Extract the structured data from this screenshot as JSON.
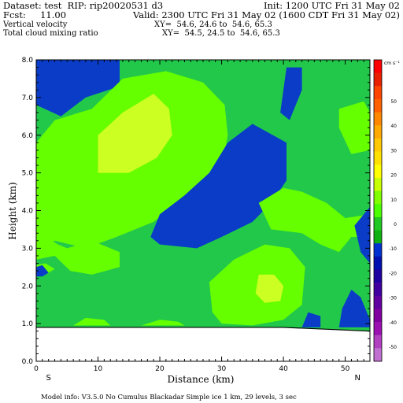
{
  "header": {
    "dataset": "Dataset: test  RIP: rip20020531 d3",
    "init": "Init: 1200 UTC Fri 31 May 02",
    "fcst": "Fcst:     11.00",
    "valid": "Valid: 2300 UTC Fri 31 May 02 (1600 CDT Fri 31 May 02)",
    "field1": "Vertical velocity",
    "xy1": "XY=  54.6, 24.6 to  54.6, 65.3",
    "field2": "Total cloud mixing ratio",
    "xy2": "XY=  54.5, 24.5 to  54.6, 65.3"
  },
  "footer": {
    "model_info": "Model info: V3.5.0 No Cumulus Blackadar  Simple ice     1 km,  29 levels,     3 sec"
  },
  "chart_data": {
    "type": "heatmap",
    "title": "",
    "xlabel": "Distance (km)",
    "ylabel": "Height (km)",
    "xlim": [
      0,
      54
    ],
    "ylim": [
      0,
      8
    ],
    "x_ticks": [
      "0",
      "10",
      "20",
      "30",
      "40",
      "50"
    ],
    "y_ticks": [
      "0.0",
      "1.0",
      "2.0",
      "3.0",
      "4.0",
      "5.0",
      "6.0",
      "7.0",
      "8.0"
    ],
    "x_end_labels": [
      "S",
      "N"
    ],
    "colorbar": {
      "unit": "cm s⁻¹",
      "labels": [
        "50",
        "40",
        "30",
        "20",
        "10",
        "0",
        "-10",
        "-20",
        "-30",
        "-40",
        "-50"
      ],
      "colors": [
        "#ff0000",
        "#e82000",
        "#ff4400",
        "#ff6000",
        "#ff8800",
        "#ffaa00",
        "#ffc800",
        "#ffe000",
        "#ffff00",
        "#c8ff00",
        "#80ff00",
        "#4cff00",
        "#22c822",
        "#10b010",
        "#0030d0",
        "#0010b0",
        "#2000a0",
        "#4000a0",
        "#6000a0",
        "#8000a0",
        "#9a10b0",
        "#b040c0",
        "#c070d0"
      ]
    },
    "fill_colors": {
      "background": "#22c84a",
      "positive_light": "#66ff00",
      "positive_strong": "#ccff22",
      "negative": "#0a3cc8"
    },
    "terrain_height_km": 0.9,
    "regions": [
      {
        "level": "negative",
        "poly": [
          [
            0,
            8
          ],
          [
            13.5,
            8
          ],
          [
            13.5,
            7.3
          ],
          [
            8,
            7
          ],
          [
            4,
            6.5
          ],
          [
            0,
            6.8
          ]
        ]
      },
      {
        "level": "positive_light",
        "poly": [
          [
            3,
            6.4
          ],
          [
            9,
            6.7
          ],
          [
            14,
            7.5
          ],
          [
            21,
            7.7
          ],
          [
            27,
            7.4
          ],
          [
            30.5,
            6.8
          ],
          [
            31,
            6
          ],
          [
            30,
            5.1
          ],
          [
            27,
            4.4
          ],
          [
            23,
            4.2
          ],
          [
            19,
            3.7
          ],
          [
            13,
            3.3
          ],
          [
            8,
            3
          ],
          [
            3,
            3.2
          ],
          [
            0,
            3
          ],
          [
            0,
            5.8
          ]
        ]
      },
      {
        "level": "positive_strong",
        "poly": [
          [
            10,
            6
          ],
          [
            14,
            6.6
          ],
          [
            19,
            7.1
          ],
          [
            21.5,
            6.7
          ],
          [
            22,
            6
          ],
          [
            19.5,
            5.4
          ],
          [
            15,
            5
          ],
          [
            10,
            5
          ]
        ]
      },
      {
        "level": "positive_light",
        "poly": [
          [
            0,
            3.5
          ],
          [
            3.5,
            3.1
          ],
          [
            5,
            3
          ],
          [
            9,
            3.2
          ],
          [
            13.5,
            2.9
          ],
          [
            13.5,
            2.5
          ],
          [
            9,
            2.3
          ],
          [
            5.5,
            2.4
          ],
          [
            3,
            2.8
          ],
          [
            0,
            2.7
          ]
        ]
      },
      {
        "level": "negative",
        "poly": [
          [
            18.5,
            3.3
          ],
          [
            20,
            3.9
          ],
          [
            24,
            4.4
          ],
          [
            28,
            5
          ],
          [
            31,
            5.8
          ],
          [
            35,
            6.3
          ],
          [
            40.5,
            5.8
          ],
          [
            40.5,
            4.8
          ],
          [
            38,
            4.2
          ],
          [
            35,
            3.7
          ],
          [
            30,
            3.3
          ],
          [
            26,
            3
          ],
          [
            20,
            3.1
          ]
        ]
      },
      {
        "level": "negative",
        "poly": [
          [
            39.5,
            6.6
          ],
          [
            40.5,
            7.8
          ],
          [
            43,
            7.8
          ],
          [
            43,
            7.2
          ],
          [
            41,
            6.4
          ]
        ]
      },
      {
        "level": "positive_light",
        "poly": [
          [
            49,
            6.7
          ],
          [
            53,
            6.9
          ],
          [
            54,
            6.6
          ],
          [
            54,
            5.6
          ],
          [
            51,
            5.5
          ],
          [
            49,
            6.2
          ]
        ]
      },
      {
        "level": "positive_light",
        "poly": [
          [
            36,
            4.2
          ],
          [
            40,
            4.6
          ],
          [
            43,
            4.5
          ],
          [
            47,
            4.2
          ],
          [
            50,
            3.8
          ],
          [
            54,
            3.9
          ],
          [
            54,
            3.3
          ],
          [
            51,
            3.3
          ],
          [
            49,
            2.9
          ],
          [
            46,
            3.1
          ],
          [
            43,
            3.4
          ],
          [
            38,
            3.5
          ]
        ]
      },
      {
        "level": "negative",
        "poly": [
          [
            51.5,
            3.6
          ],
          [
            54,
            4.1
          ],
          [
            54,
            2.6
          ],
          [
            52.5,
            2.9
          ]
        ]
      },
      {
        "level": "positive_light",
        "poly": [
          [
            28.5,
            1.3
          ],
          [
            28,
            2.1
          ],
          [
            32,
            2.7
          ],
          [
            37,
            3.1
          ],
          [
            41,
            3
          ],
          [
            43.5,
            2.5
          ],
          [
            43,
            1.5
          ],
          [
            40,
            1.1
          ],
          [
            35,
            0.95
          ],
          [
            30,
            1
          ]
        ]
      },
      {
        "level": "positive_strong",
        "poly": [
          [
            35.5,
            1.8
          ],
          [
            36,
            2.3
          ],
          [
            38.5,
            2.3
          ],
          [
            40,
            2
          ],
          [
            39.5,
            1.6
          ],
          [
            37,
            1.55
          ]
        ]
      },
      {
        "level": "negative",
        "poly": [
          [
            43,
            0.9
          ],
          [
            44,
            1.3
          ],
          [
            46,
            1.2
          ],
          [
            46,
            0.9
          ]
        ]
      },
      {
        "level": "negative",
        "poly": [
          [
            49,
            0.9
          ],
          [
            49.5,
            1.4
          ],
          [
            51,
            1.9
          ],
          [
            52.5,
            1.7
          ],
          [
            54,
            1.1
          ],
          [
            54,
            0.9
          ]
        ]
      },
      {
        "level": "positive_light",
        "poly": [
          [
            0,
            2.55
          ],
          [
            1.5,
            2.6
          ],
          [
            3,
            2.45
          ],
          [
            1.5,
            2.3
          ],
          [
            0,
            2.3
          ]
        ]
      },
      {
        "level": "negative",
        "poly": [
          [
            0,
            2.5
          ],
          [
            1,
            2.55
          ],
          [
            2,
            2.35
          ],
          [
            1,
            2.25
          ],
          [
            0,
            2.25
          ]
        ]
      },
      {
        "level": "positive_light",
        "poly": [
          [
            6,
            0.95
          ],
          [
            8,
            1.15
          ],
          [
            11,
            1.1
          ],
          [
            12,
            0.95
          ]
        ]
      },
      {
        "level": "positive_light",
        "poly": [
          [
            17,
            0.95
          ],
          [
            20,
            1.1
          ],
          [
            23,
            1.05
          ],
          [
            24,
            0.95
          ]
        ]
      }
    ]
  }
}
